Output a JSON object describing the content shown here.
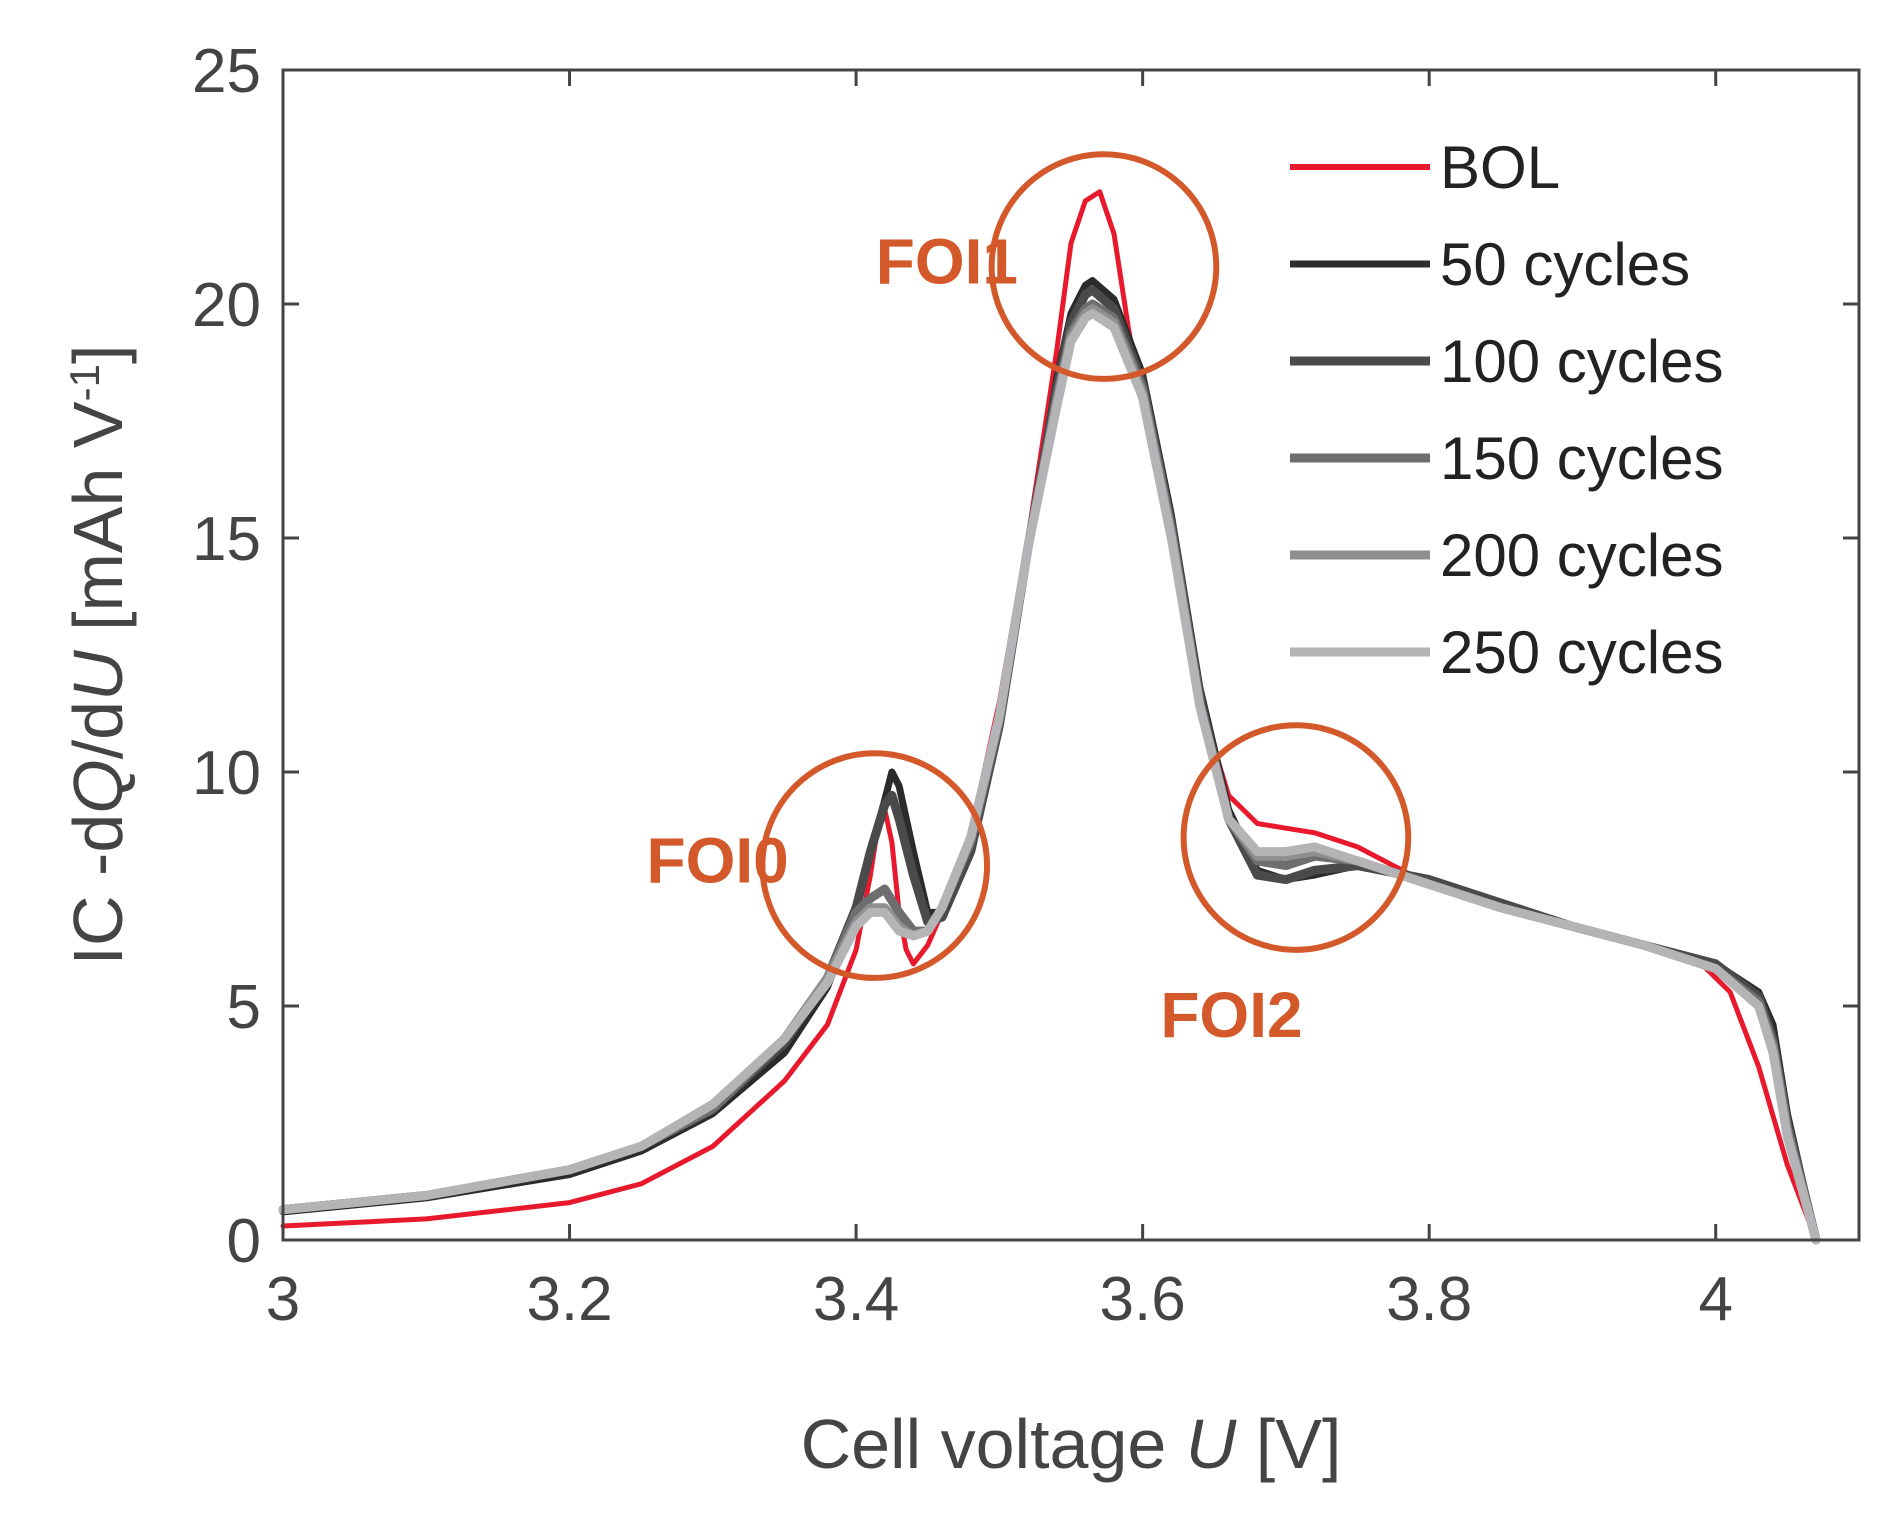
{
  "chart_data": {
    "type": "line",
    "xlabel": {
      "prefix": "Cell voltage ",
      "var": "U",
      "suffix": " [V]"
    },
    "ylabel": {
      "p1": "IC -d",
      "q": "Q",
      "p2": "/d",
      "u": "U",
      "p3": " [mAh V",
      "sup": "-1",
      "p4": "]"
    },
    "xlim": [
      3.0,
      4.1
    ],
    "ylim": [
      0,
      25
    ],
    "xticks": [
      3.0,
      3.2,
      3.4,
      3.6,
      3.8,
      4.0
    ],
    "xtick_labels": [
      "3",
      "3.2",
      "3.4",
      "3.6",
      "3.8",
      "4"
    ],
    "yticks": [
      0,
      5,
      10,
      15,
      20,
      25
    ],
    "ytick_labels": [
      "0",
      "5",
      "10",
      "15",
      "20",
      "25"
    ],
    "grid": false,
    "legend_position": "top-right",
    "series": [
      {
        "name": "BOL",
        "color": "#e8192c",
        "width": 5,
        "points": [
          [
            3.0,
            0.3
          ],
          [
            3.1,
            0.45
          ],
          [
            3.2,
            0.8
          ],
          [
            3.25,
            1.2
          ],
          [
            3.3,
            2.0
          ],
          [
            3.35,
            3.4
          ],
          [
            3.38,
            4.6
          ],
          [
            3.4,
            6.2
          ],
          [
            3.41,
            7.8
          ],
          [
            3.415,
            8.8
          ],
          [
            3.42,
            9.2
          ],
          [
            3.425,
            8.5
          ],
          [
            3.43,
            7.0
          ],
          [
            3.435,
            6.2
          ],
          [
            3.44,
            5.9
          ],
          [
            3.45,
            6.3
          ],
          [
            3.46,
            7.0
          ],
          [
            3.48,
            8.7
          ],
          [
            3.5,
            11.5
          ],
          [
            3.52,
            15.0
          ],
          [
            3.54,
            19.0
          ],
          [
            3.55,
            21.3
          ],
          [
            3.56,
            22.2
          ],
          [
            3.57,
            22.4
          ],
          [
            3.58,
            21.5
          ],
          [
            3.59,
            19.5
          ],
          [
            3.6,
            17.8
          ],
          [
            3.62,
            14.8
          ],
          [
            3.64,
            11.5
          ],
          [
            3.66,
            9.5
          ],
          [
            3.68,
            8.9
          ],
          [
            3.7,
            8.8
          ],
          [
            3.72,
            8.7
          ],
          [
            3.75,
            8.4
          ],
          [
            3.8,
            7.6
          ],
          [
            3.85,
            7.1
          ],
          [
            3.9,
            6.7
          ],
          [
            3.95,
            6.3
          ],
          [
            3.99,
            5.9
          ],
          [
            4.01,
            5.3
          ],
          [
            4.03,
            3.7
          ],
          [
            4.05,
            1.6
          ],
          [
            4.07,
            0.0
          ]
        ]
      },
      {
        "name": "50 cycles",
        "color": "#2b2b2b",
        "width": 7,
        "points": [
          [
            3.0,
            0.6
          ],
          [
            3.1,
            0.9
          ],
          [
            3.2,
            1.4
          ],
          [
            3.25,
            1.9
          ],
          [
            3.3,
            2.7
          ],
          [
            3.35,
            4.0
          ],
          [
            3.38,
            5.4
          ],
          [
            3.4,
            7.0
          ],
          [
            3.41,
            8.3
          ],
          [
            3.42,
            9.4
          ],
          [
            3.425,
            10.0
          ],
          [
            3.43,
            9.7
          ],
          [
            3.44,
            8.3
          ],
          [
            3.45,
            7.0
          ],
          [
            3.46,
            7.0
          ],
          [
            3.48,
            8.3
          ],
          [
            3.5,
            11.0
          ],
          [
            3.52,
            14.8
          ],
          [
            3.54,
            18.4
          ],
          [
            3.55,
            19.8
          ],
          [
            3.56,
            20.4
          ],
          [
            3.565,
            20.5
          ],
          [
            3.58,
            20.1
          ],
          [
            3.6,
            18.5
          ],
          [
            3.62,
            15.5
          ],
          [
            3.64,
            11.8
          ],
          [
            3.66,
            9.2
          ],
          [
            3.68,
            7.9
          ],
          [
            3.7,
            7.7
          ],
          [
            3.72,
            7.8
          ],
          [
            3.75,
            8.0
          ],
          [
            3.8,
            7.7
          ],
          [
            3.85,
            7.2
          ],
          [
            3.9,
            6.7
          ],
          [
            3.95,
            6.3
          ],
          [
            4.0,
            5.9
          ],
          [
            4.03,
            5.3
          ],
          [
            4.04,
            4.6
          ],
          [
            4.05,
            2.7
          ],
          [
            4.07,
            0.0
          ]
        ]
      },
      {
        "name": "100 cycles",
        "color": "#4a4a4a",
        "width": 9,
        "points": [
          [
            3.0,
            0.65
          ],
          [
            3.1,
            0.95
          ],
          [
            3.2,
            1.5
          ],
          [
            3.25,
            2.0
          ],
          [
            3.3,
            2.8
          ],
          [
            3.35,
            4.2
          ],
          [
            3.38,
            5.6
          ],
          [
            3.4,
            7.1
          ],
          [
            3.41,
            8.3
          ],
          [
            3.42,
            9.3
          ],
          [
            3.425,
            9.5
          ],
          [
            3.43,
            9.0
          ],
          [
            3.44,
            7.8
          ],
          [
            3.45,
            6.8
          ],
          [
            3.46,
            6.9
          ],
          [
            3.48,
            8.3
          ],
          [
            3.5,
            11.0
          ],
          [
            3.52,
            14.8
          ],
          [
            3.54,
            18.2
          ],
          [
            3.55,
            19.6
          ],
          [
            3.56,
            20.2
          ],
          [
            3.565,
            20.3
          ],
          [
            3.58,
            19.9
          ],
          [
            3.6,
            18.3
          ],
          [
            3.62,
            15.3
          ],
          [
            3.64,
            11.6
          ],
          [
            3.66,
            9.0
          ],
          [
            3.68,
            7.8
          ],
          [
            3.7,
            7.7
          ],
          [
            3.72,
            7.9
          ],
          [
            3.75,
            8.0
          ],
          [
            3.8,
            7.7
          ],
          [
            3.85,
            7.2
          ],
          [
            3.9,
            6.7
          ],
          [
            3.95,
            6.3
          ],
          [
            4.0,
            5.9
          ],
          [
            4.03,
            5.2
          ],
          [
            4.04,
            4.3
          ],
          [
            4.05,
            2.5
          ],
          [
            4.07,
            0.0
          ]
        ]
      },
      {
        "name": "150 cycles",
        "color": "#6e6e70",
        "width": 9,
        "points": [
          [
            3.0,
            0.65
          ],
          [
            3.1,
            0.95
          ],
          [
            3.2,
            1.5
          ],
          [
            3.25,
            2.0
          ],
          [
            3.3,
            2.8
          ],
          [
            3.35,
            4.3
          ],
          [
            3.38,
            5.6
          ],
          [
            3.4,
            7.0
          ],
          [
            3.41,
            7.3
          ],
          [
            3.42,
            7.5
          ],
          [
            3.43,
            7.0
          ],
          [
            3.44,
            6.6
          ],
          [
            3.45,
            6.6
          ],
          [
            3.46,
            7.1
          ],
          [
            3.48,
            8.5
          ],
          [
            3.5,
            11.1
          ],
          [
            3.52,
            14.8
          ],
          [
            3.54,
            18.0
          ],
          [
            3.55,
            19.4
          ],
          [
            3.56,
            19.9
          ],
          [
            3.565,
            20.0
          ],
          [
            3.58,
            19.7
          ],
          [
            3.6,
            18.2
          ],
          [
            3.62,
            15.2
          ],
          [
            3.64,
            11.5
          ],
          [
            3.66,
            9.0
          ],
          [
            3.68,
            8.1
          ],
          [
            3.7,
            8.0
          ],
          [
            3.72,
            8.2
          ],
          [
            3.75,
            8.1
          ],
          [
            3.8,
            7.6
          ],
          [
            3.85,
            7.1
          ],
          [
            3.9,
            6.7
          ],
          [
            3.95,
            6.3
          ],
          [
            4.0,
            5.8
          ],
          [
            4.03,
            5.1
          ],
          [
            4.04,
            4.2
          ],
          [
            4.05,
            2.4
          ],
          [
            4.07,
            0.0
          ]
        ]
      },
      {
        "name": "200 cycles",
        "color": "#8f8f91",
        "width": 9,
        "points": [
          [
            3.0,
            0.65
          ],
          [
            3.1,
            0.95
          ],
          [
            3.2,
            1.5
          ],
          [
            3.25,
            2.0
          ],
          [
            3.3,
            2.9
          ],
          [
            3.35,
            4.3
          ],
          [
            3.38,
            5.6
          ],
          [
            3.4,
            6.8
          ],
          [
            3.41,
            7.1
          ],
          [
            3.42,
            7.1
          ],
          [
            3.43,
            6.7
          ],
          [
            3.44,
            6.5
          ],
          [
            3.45,
            6.6
          ],
          [
            3.46,
            7.1
          ],
          [
            3.48,
            8.6
          ],
          [
            3.5,
            11.2
          ],
          [
            3.52,
            14.8
          ],
          [
            3.54,
            17.9
          ],
          [
            3.55,
            19.3
          ],
          [
            3.56,
            19.8
          ],
          [
            3.565,
            19.9
          ],
          [
            3.58,
            19.6
          ],
          [
            3.6,
            18.1
          ],
          [
            3.62,
            15.1
          ],
          [
            3.64,
            11.4
          ],
          [
            3.66,
            9.0
          ],
          [
            3.68,
            8.2
          ],
          [
            3.7,
            8.2
          ],
          [
            3.72,
            8.3
          ],
          [
            3.75,
            8.1
          ],
          [
            3.8,
            7.6
          ],
          [
            3.85,
            7.1
          ],
          [
            3.9,
            6.7
          ],
          [
            3.95,
            6.3
          ],
          [
            4.0,
            5.8
          ],
          [
            4.03,
            5.0
          ],
          [
            4.04,
            4.1
          ],
          [
            4.05,
            2.3
          ],
          [
            4.07,
            0.0
          ]
        ]
      },
      {
        "name": "250 cycles",
        "color": "#b4b4b6",
        "width": 9,
        "points": [
          [
            3.0,
            0.65
          ],
          [
            3.1,
            0.95
          ],
          [
            3.2,
            1.5
          ],
          [
            3.25,
            2.0
          ],
          [
            3.3,
            2.9
          ],
          [
            3.35,
            4.3
          ],
          [
            3.38,
            5.5
          ],
          [
            3.4,
            6.7
          ],
          [
            3.41,
            7.0
          ],
          [
            3.42,
            7.0
          ],
          [
            3.43,
            6.6
          ],
          [
            3.44,
            6.5
          ],
          [
            3.45,
            6.6
          ],
          [
            3.46,
            7.1
          ],
          [
            3.48,
            8.6
          ],
          [
            3.5,
            11.2
          ],
          [
            3.52,
            14.8
          ],
          [
            3.54,
            17.8
          ],
          [
            3.55,
            19.2
          ],
          [
            3.56,
            19.7
          ],
          [
            3.565,
            19.8
          ],
          [
            3.58,
            19.5
          ],
          [
            3.6,
            18.0
          ],
          [
            3.62,
            15.0
          ],
          [
            3.64,
            11.4
          ],
          [
            3.66,
            9.0
          ],
          [
            3.68,
            8.3
          ],
          [
            3.7,
            8.3
          ],
          [
            3.72,
            8.4
          ],
          [
            3.75,
            8.1
          ],
          [
            3.8,
            7.6
          ],
          [
            3.85,
            7.1
          ],
          [
            3.9,
            6.7
          ],
          [
            3.95,
            6.3
          ],
          [
            4.0,
            5.8
          ],
          [
            4.03,
            5.0
          ],
          [
            4.04,
            4.0
          ],
          [
            4.05,
            2.2
          ],
          [
            4.07,
            0.0
          ]
        ]
      }
    ],
    "annotations": [
      {
        "label": "FOI0",
        "cx": 3.413,
        "cy": 8.0,
        "ry": 2.4,
        "label_x": 3.353,
        "label_y": 8.0,
        "anchor": "end"
      },
      {
        "label": "FOI1",
        "cx": 3.573,
        "cy": 20.8,
        "ry": 2.4,
        "label_x": 3.513,
        "label_y": 20.8,
        "anchor": "end"
      },
      {
        "label": "FOI2",
        "cx": 3.707,
        "cy": 8.6,
        "ry": 2.4,
        "label_x": 3.662,
        "label_y": 4.7,
        "anchor": "middle"
      }
    ],
    "annotation_color": "#d4592a"
  }
}
